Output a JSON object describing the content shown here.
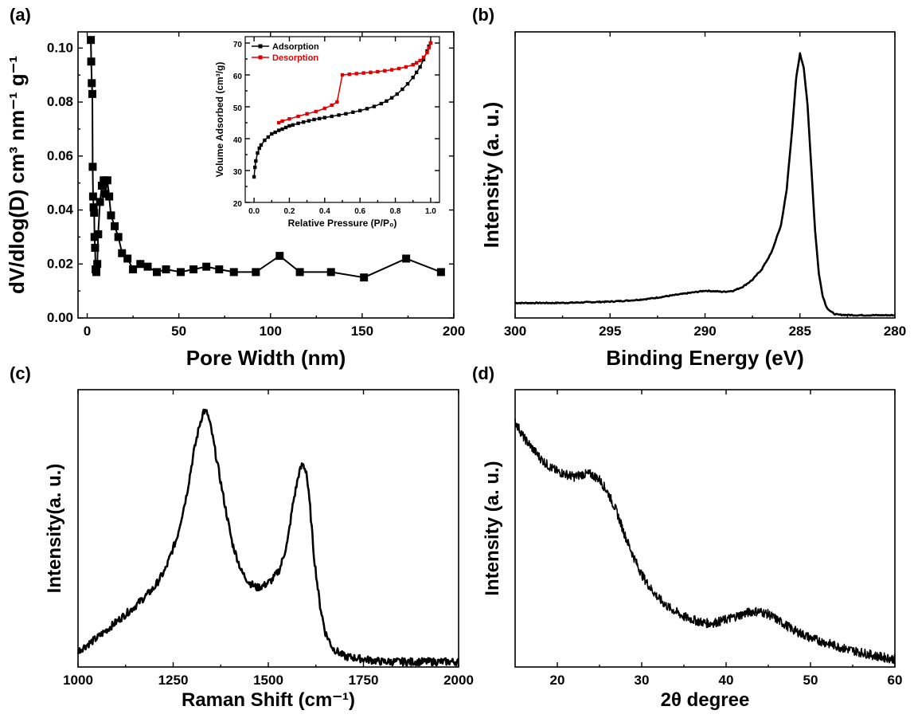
{
  "panels": {
    "a": {
      "label": "(a)"
    },
    "b": {
      "label": "(b)"
    },
    "c": {
      "label": "(c)"
    },
    "d": {
      "label": "(d)"
    }
  },
  "chart_data": [
    {
      "id": "a",
      "type": "line",
      "xlabel": "Pore Width (nm)",
      "ylabel": "dV/dlog(D) cm³ nm⁻¹ g⁻¹",
      "xlim": [
        -5,
        200
      ],
      "ylim": [
        0,
        0.106
      ],
      "xticks": [
        0,
        50,
        100,
        150,
        200
      ],
      "yticks": [
        0.0,
        0.02,
        0.04,
        0.06,
        0.08,
        0.1
      ],
      "ytick_labels": [
        "0.00",
        "0.02",
        "0.04",
        "0.06",
        "0.08",
        "0.10"
      ],
      "marker": "square",
      "series": [
        {
          "x": [
            2,
            2.2,
            2.5,
            2.8,
            3,
            3.2,
            3.5,
            3.8,
            4,
            4.3,
            4.6,
            5,
            5.5,
            6,
            7,
            8,
            9,
            10,
            11,
            12,
            13,
            15,
            17,
            19,
            22,
            25,
            29,
            33,
            38,
            43,
            51,
            58,
            65,
            72,
            80,
            92,
            105,
            116,
            133,
            151,
            174,
            193
          ],
          "y": [
            0.103,
            0.095,
            0.087,
            0.083,
            0.056,
            0.045,
            0.041,
            0.039,
            0.03,
            0.026,
            0.018,
            0.017,
            0.02,
            0.031,
            0.043,
            0.049,
            0.051,
            0.046,
            0.051,
            0.045,
            0.038,
            0.034,
            0.03,
            0.024,
            0.022,
            0.018,
            0.02,
            0.019,
            0.017,
            0.018,
            0.017,
            0.018,
            0.019,
            0.018,
            0.017,
            0.017,
            0.023,
            0.017,
            0.017,
            0.015,
            0.022,
            0.017
          ]
        }
      ],
      "inset": {
        "type": "line",
        "xlabel": "Relative Pressure (P/P₀)",
        "ylabel": "Volume Adsorbed (cm³/g)",
        "xlim": [
          -0.05,
          1.05
        ],
        "ylim": [
          20,
          72
        ],
        "xticks": [
          0.0,
          0.2,
          0.4,
          0.6,
          0.8,
          1.0
        ],
        "xtick_labels": [
          "0.0",
          "0.2",
          "0.4",
          "0.6",
          "0.8",
          "1.0"
        ],
        "yticks": [
          20,
          30,
          40,
          50,
          60,
          70
        ],
        "legend_position": "top-left",
        "series": [
          {
            "name": "Adsorption",
            "color": "#000000",
            "x": [
              0.0,
              0.005,
              0.01,
              0.02,
              0.03,
              0.04,
              0.06,
              0.08,
              0.1,
              0.12,
              0.14,
              0.16,
              0.18,
              0.2,
              0.22,
              0.25,
              0.28,
              0.31,
              0.34,
              0.37,
              0.4,
              0.44,
              0.48,
              0.52,
              0.56,
              0.6,
              0.64,
              0.68,
              0.72,
              0.75,
              0.78,
              0.81,
              0.84,
              0.87,
              0.9,
              0.92,
              0.94,
              0.96,
              0.98,
              0.99,
              1.0
            ],
            "y": [
              28,
              31,
              33,
              35.5,
              37,
              38,
              39.5,
              40.5,
              41.5,
              42,
              42.6,
              43,
              43.5,
              44,
              44.3,
              44.8,
              45.2,
              45.6,
              46,
              46.3,
              46.6,
              47,
              47.4,
              47.8,
              48.3,
              48.8,
              49.4,
              50.1,
              51,
              51.8,
              52.8,
              54,
              55.5,
              57.2,
              59.2,
              60.8,
              62.5,
              64.8,
              67.5,
              69,
              70
            ]
          },
          {
            "name": "Desorption",
            "color": "#e00000",
            "x": [
              1.0,
              0.99,
              0.98,
              0.96,
              0.94,
              0.92,
              0.9,
              0.86,
              0.82,
              0.78,
              0.74,
              0.7,
              0.66,
              0.62,
              0.58,
              0.54,
              0.5,
              0.47,
              0.44,
              0.4,
              0.35,
              0.3,
              0.25,
              0.2,
              0.16,
              0.14
            ],
            "y": [
              70,
              68.5,
              67,
              65.5,
              64.5,
              63.8,
              63.2,
              62.5,
              62,
              61.6,
              61.3,
              61,
              60.8,
              60.6,
              60.4,
              60.2,
              60,
              51.5,
              50.5,
              49.5,
              48.5,
              47.8,
              47,
              46.2,
              45.5,
              45
            ]
          }
        ]
      }
    },
    {
      "id": "b",
      "type": "line",
      "xlabel": "Binding Energy (eV)",
      "ylabel": "Intensity (a. u.)",
      "xlim": [
        300,
        280
      ],
      "x_reversed": true,
      "xticks": [
        300,
        295,
        290,
        285,
        280
      ],
      "ylim": [
        0,
        1.05
      ],
      "series": [
        {
          "x": [
            300,
            299,
            298,
            297,
            296,
            295,
            294,
            293,
            292,
            291,
            290,
            289.5,
            289,
            288.5,
            288,
            287.5,
            287,
            286.5,
            286,
            285.7,
            285.4,
            285.2,
            285.0,
            284.8,
            284.6,
            284.4,
            284.2,
            284.0,
            283.8,
            283.6,
            283.4,
            283.2,
            283.0,
            282.5,
            282,
            281,
            280
          ],
          "y": [
            0.055,
            0.055,
            0.055,
            0.056,
            0.058,
            0.06,
            0.064,
            0.07,
            0.08,
            0.09,
            0.1,
            0.098,
            0.096,
            0.1,
            0.115,
            0.14,
            0.18,
            0.24,
            0.34,
            0.47,
            0.7,
            0.88,
            0.97,
            0.92,
            0.78,
            0.55,
            0.32,
            0.16,
            0.08,
            0.04,
            0.025,
            0.015,
            0.012,
            0.011,
            0.01,
            0.01,
            0.01
          ]
        }
      ]
    },
    {
      "id": "c",
      "type": "line",
      "xlabel": "Raman Shift (cm⁻¹)",
      "ylabel": "Intensity(a. u.)",
      "xlim": [
        1000,
        2000
      ],
      "xticks": [
        1000,
        1250,
        1500,
        1750,
        2000
      ],
      "ylim": [
        0,
        1.05
      ],
      "series": [
        {
          "x": [
            1000,
            1050,
            1100,
            1150,
            1200,
            1230,
            1260,
            1285,
            1305,
            1320,
            1330,
            1340,
            1350,
            1365,
            1385,
            1405,
            1430,
            1450,
            1470,
            1490,
            1510,
            1530,
            1550,
            1565,
            1580,
            1590,
            1600,
            1610,
            1620,
            1635,
            1650,
            1670,
            1700,
            1750,
            1800,
            1850,
            1900,
            1950,
            2000
          ],
          "y": [
            0.06,
            0.11,
            0.17,
            0.23,
            0.3,
            0.37,
            0.49,
            0.65,
            0.82,
            0.92,
            0.97,
            0.96,
            0.9,
            0.78,
            0.62,
            0.47,
            0.36,
            0.32,
            0.3,
            0.31,
            0.33,
            0.37,
            0.47,
            0.62,
            0.73,
            0.77,
            0.74,
            0.6,
            0.42,
            0.24,
            0.13,
            0.07,
            0.04,
            0.03,
            0.02,
            0.02,
            0.02,
            0.02,
            0.02
          ]
        }
      ]
    },
    {
      "id": "d",
      "type": "line",
      "xlabel": "2θ degree",
      "ylabel": "Intensity (a. u.)",
      "xlim": [
        15,
        60
      ],
      "xticks": [
        20,
        30,
        40,
        50,
        60
      ],
      "ylim": [
        0,
        1.05
      ],
      "series": [
        {
          "x": [
            15,
            16,
            17,
            18,
            19,
            20,
            21,
            22,
            23,
            24,
            25,
            26,
            27,
            28,
            29,
            30,
            31,
            32,
            33,
            34,
            35,
            36,
            37,
            38,
            39,
            40,
            41,
            42,
            43,
            44,
            45,
            46,
            47,
            48,
            50,
            52,
            54,
            56,
            58,
            60
          ],
          "y": [
            0.93,
            0.87,
            0.83,
            0.79,
            0.76,
            0.74,
            0.73,
            0.72,
            0.73,
            0.73,
            0.71,
            0.66,
            0.59,
            0.5,
            0.42,
            0.35,
            0.3,
            0.26,
            0.23,
            0.21,
            0.19,
            0.18,
            0.17,
            0.165,
            0.17,
            0.18,
            0.19,
            0.2,
            0.21,
            0.21,
            0.2,
            0.18,
            0.16,
            0.14,
            0.11,
            0.09,
            0.07,
            0.055,
            0.04,
            0.03
          ]
        }
      ]
    }
  ]
}
